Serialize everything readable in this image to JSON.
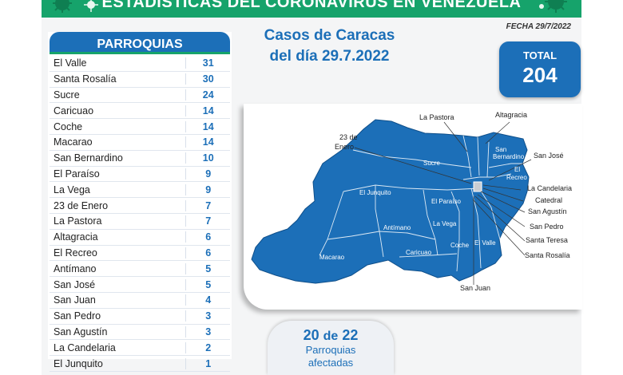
{
  "header": {
    "title": "ESTADÍSTICAS DEL CORONAVIRUS EN VENEZUELA",
    "fecha": "FECHA 29/7/2022"
  },
  "list": {
    "title": "PARROQUIAS",
    "rows": [
      {
        "name": "El Valle",
        "value": "31"
      },
      {
        "name": "Santa Rosalía",
        "value": "30"
      },
      {
        "name": "Sucre",
        "value": "24"
      },
      {
        "name": "Caricuao",
        "value": "14"
      },
      {
        "name": "Coche",
        "value": "14"
      },
      {
        "name": "Macarao",
        "value": "14"
      },
      {
        "name": "San Bernardino",
        "value": "10"
      },
      {
        "name": "El Paraíso",
        "value": "9"
      },
      {
        "name": "La Vega",
        "value": "9"
      },
      {
        "name": "23 de Enero",
        "value": "7"
      },
      {
        "name": "La Pastora",
        "value": "7"
      },
      {
        "name": "Altagracia",
        "value": "6"
      },
      {
        "name": "El Recreo",
        "value": "6"
      },
      {
        "name": "Antímano",
        "value": "5"
      },
      {
        "name": "San José",
        "value": "5"
      },
      {
        "name": "San Juan",
        "value": "4"
      },
      {
        "name": "San Pedro",
        "value": "3"
      },
      {
        "name": "San Agustín",
        "value": "3"
      },
      {
        "name": "La Candelaria",
        "value": "2"
      },
      {
        "name": "El Junquito",
        "value": "1"
      }
    ]
  },
  "casos": {
    "line1": "Casos de Caracas",
    "line2": "del día 29.7.2022"
  },
  "total": {
    "label": "TOTAL",
    "value": "204"
  },
  "afectadas": {
    "count": "20",
    "of": "de",
    "total": "22",
    "line1": "Parroquias",
    "line2": "afectadas"
  },
  "map": {
    "labels": {
      "la_pastora": "La Pastora",
      "altagracia": "Altagracia",
      "enero_1": "23 de",
      "enero_2": "Enero",
      "san_bernardino_1": "San",
      "san_bernardino_2": "Bernardino",
      "san_jose": "San José",
      "el_recreo_1": "El",
      "el_recreo_2": "Recreo",
      "sucre": "Sucre",
      "la_candelaria": "La Candelaria",
      "catedral": "Catedral",
      "el_junquito": "El Junquito",
      "el_paraiso": "El Paraíso",
      "san_agustin": "San Agustín",
      "san_pedro": "San Pedro",
      "la_vega": "La Vega",
      "antimano": "Antímano",
      "santa_teresa": "Santa Teresa",
      "el_valle": "El Valle",
      "santa_rosalia": "Santa Rosalía",
      "macarao": "Macarao",
      "caricuao": "Caricuao",
      "coche": "Coche",
      "san_juan": "San Juan"
    },
    "colors": {
      "fill": "#1c6fb8",
      "border": "#ffffff",
      "accent_green": "#16a36b"
    }
  }
}
